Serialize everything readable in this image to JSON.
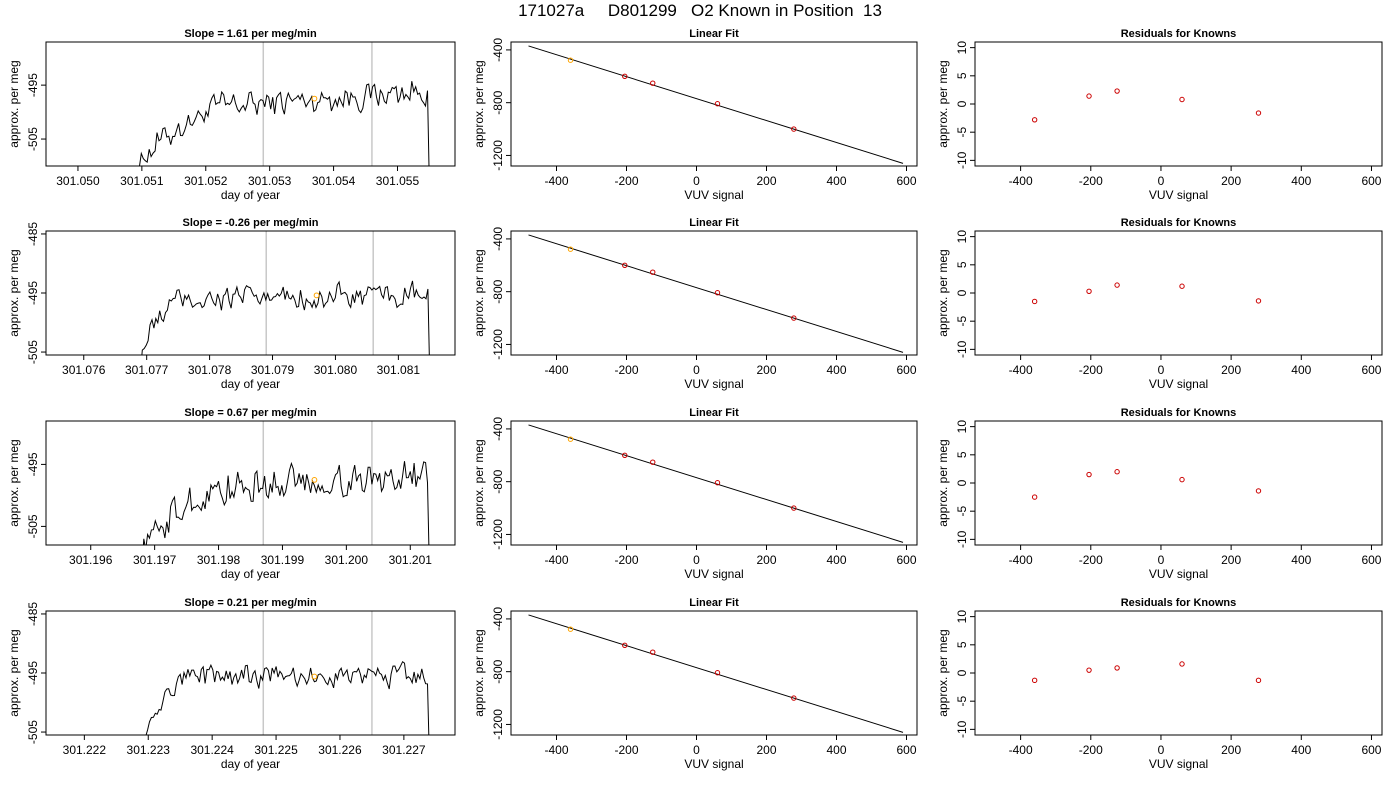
{
  "title": "171027a     D801299   O2 Known in Position  13",
  "colors": {
    "trace": "#000000",
    "vline": "#c8c8c8",
    "highlight": "#ffa500",
    "residual": "#cc0000",
    "fit": "#000000"
  },
  "chart_data": [
    {
      "type": "line",
      "panel": "timeseries",
      "row": 1,
      "title": "Slope =  1.61  per meg/min",
      "xlabel": "day of year",
      "ylabel": "approx. per meg",
      "xlim": [
        301.0495,
        301.0559
      ],
      "ylim": [
        -510,
        -487
      ],
      "xticks": [
        "301.050",
        "301.051",
        "301.052",
        "301.053",
        "301.054",
        "301.055"
      ],
      "yticks": [
        "-495",
        "-505"
      ],
      "vlines": [
        301.0529,
        301.0546
      ],
      "start": 301.0509,
      "end": 301.0555,
      "rise_end": 301.0522,
      "start_level": -512,
      "base_level": -499,
      "end_level": -496,
      "noise": 1.6,
      "highlight_point": {
        "x": 301.0537,
        "y": -497.5
      }
    },
    {
      "type": "scatter",
      "panel": "fit",
      "row": 1,
      "title": "Linear Fit",
      "xlabel": "VUV signal",
      "ylabel": "approx. per meg",
      "xlim": [
        -530,
        630
      ],
      "ylim": [
        -1280,
        -340
      ],
      "xticks": [
        "-400",
        "-200",
        "0",
        "200",
        "400",
        "600"
      ],
      "yticks": [
        "-400",
        "-800",
        "-1200"
      ],
      "line": {
        "x": [
          -480,
          590
        ],
        "y": [
          -370,
          -1260
        ]
      },
      "points": [
        [
          -360,
          -478
        ],
        [
          -205,
          -600
        ],
        [
          -125,
          -652
        ],
        [
          60,
          -808
        ],
        [
          278,
          -1000
        ]
      ],
      "highlight_index": 0
    },
    {
      "type": "scatter",
      "panel": "residuals",
      "row": 1,
      "title": "Residuals for Knowns",
      "xlabel": "VUV signal",
      "ylabel": "approx. per meg",
      "xlim": [
        -530,
        630
      ],
      "ylim": [
        -11,
        11
      ],
      "xticks": [
        "-400",
        "-200",
        "0",
        "200",
        "400",
        "600"
      ],
      "yticks": [
        "-10",
        "-5",
        "0",
        "5",
        "10"
      ],
      "points": [
        [
          -360,
          -2.8
        ],
        [
          -205,
          1.4
        ],
        [
          -125,
          2.3
        ],
        [
          60,
          0.8
        ],
        [
          278,
          -1.6
        ]
      ]
    },
    {
      "type": "line",
      "panel": "timeseries",
      "row": 2,
      "title": "Slope =  -0.26  per meg/min",
      "xlabel": "day of year",
      "ylabel": "approx. per meg",
      "xlim": [
        301.0754,
        301.0819
      ],
      "ylim": [
        -505.5,
        -484.5
      ],
      "xticks": [
        "301.076",
        "301.077",
        "301.078",
        "301.079",
        "301.080",
        "301.081"
      ],
      "yticks": [
        "-485",
        "-495",
        "-505"
      ],
      "vlines": [
        301.0789,
        301.0806
      ],
      "start": 301.0769,
      "end": 301.0815,
      "rise_end": 301.0775,
      "start_level": -507,
      "base_level": -496,
      "end_level": -495.5,
      "noise": 1.3,
      "highlight_point": {
        "x": 301.0797,
        "y": -495.4
      }
    },
    {
      "type": "scatter",
      "panel": "fit",
      "row": 2,
      "title": "Linear Fit",
      "xlabel": "VUV signal",
      "ylabel": "approx. per meg",
      "xlim": [
        -530,
        630
      ],
      "ylim": [
        -1280,
        -340
      ],
      "xticks": [
        "-400",
        "-200",
        "0",
        "200",
        "400",
        "600"
      ],
      "yticks": [
        "-400",
        "-800",
        "-1200"
      ],
      "line": {
        "x": [
          -480,
          590
        ],
        "y": [
          -370,
          -1260
        ]
      },
      "points": [
        [
          -360,
          -478
        ],
        [
          -205,
          -600
        ],
        [
          -125,
          -652
        ],
        [
          60,
          -808
        ],
        [
          278,
          -1000
        ]
      ],
      "highlight_index": 0
    },
    {
      "type": "scatter",
      "panel": "residuals",
      "row": 2,
      "title": "Residuals for Knowns",
      "xlabel": "VUV signal",
      "ylabel": "approx. per meg",
      "xlim": [
        -530,
        630
      ],
      "ylim": [
        -11,
        11
      ],
      "xticks": [
        "-400",
        "-200",
        "0",
        "200",
        "400",
        "600"
      ],
      "yticks": [
        "-10",
        "-5",
        "0",
        "5",
        "10"
      ],
      "points": [
        [
          -360,
          -1.5
        ],
        [
          -205,
          0.3
        ],
        [
          -125,
          1.4
        ],
        [
          60,
          1.2
        ],
        [
          278,
          -1.4
        ]
      ]
    },
    {
      "type": "line",
      "panel": "timeseries",
      "row": 3,
      "title": "Slope =  0.67  per meg/min",
      "xlabel": "day of year",
      "ylabel": "approx. per meg",
      "xlim": [
        301.1953,
        301.2017
      ],
      "ylim": [
        -508,
        -488
      ],
      "xticks": [
        "301.196",
        "301.197",
        "301.198",
        "301.199",
        "301.200",
        "301.201"
      ],
      "yticks": [
        "-495",
        "-505"
      ],
      "vlines": [
        301.1987,
        301.2004
      ],
      "start": 301.1968,
      "end": 301.2013,
      "rise_end": 301.198,
      "start_level": -510,
      "base_level": -499,
      "end_level": -496.5,
      "noise": 1.8,
      "highlight_point": {
        "x": 301.1995,
        "y": -497.5
      }
    },
    {
      "type": "scatter",
      "panel": "fit",
      "row": 3,
      "title": "Linear Fit",
      "xlabel": "VUV signal",
      "ylabel": "approx. per meg",
      "xlim": [
        -530,
        630
      ],
      "ylim": [
        -1280,
        -340
      ],
      "xticks": [
        "-400",
        "-200",
        "0",
        "200",
        "400",
        "600"
      ],
      "yticks": [
        "-400",
        "-800",
        "-1200"
      ],
      "line": {
        "x": [
          -480,
          590
        ],
        "y": [
          -370,
          -1260
        ]
      },
      "points": [
        [
          -360,
          -478
        ],
        [
          -205,
          -600
        ],
        [
          -125,
          -652
        ],
        [
          60,
          -808
        ],
        [
          278,
          -1000
        ]
      ],
      "highlight_index": 0
    },
    {
      "type": "scatter",
      "panel": "residuals",
      "row": 3,
      "title": "Residuals for Knowns",
      "xlabel": "VUV signal",
      "ylabel": "approx. per meg",
      "xlim": [
        -530,
        630
      ],
      "ylim": [
        -11,
        11
      ],
      "xticks": [
        "-400",
        "-200",
        "0",
        "200",
        "400",
        "600"
      ],
      "yticks": [
        "-10",
        "-5",
        "0",
        "5",
        "10"
      ],
      "points": [
        [
          -360,
          -2.5
        ],
        [
          -205,
          1.5
        ],
        [
          -125,
          2.0
        ],
        [
          60,
          0.6
        ],
        [
          278,
          -1.4
        ]
      ]
    },
    {
      "type": "line",
      "panel": "timeseries",
      "row": 4,
      "title": "Slope =  0.21  per meg/min",
      "xlabel": "day of year",
      "ylabel": "approx. per meg",
      "xlim": [
        301.2214,
        301.2278
      ],
      "ylim": [
        -505.5,
        -484.5
      ],
      "xticks": [
        "301.222",
        "301.223",
        "301.224",
        "301.225",
        "301.226",
        "301.227"
      ],
      "yticks": [
        "-485",
        "-495",
        "-505"
      ],
      "vlines": [
        301.2248,
        301.2265
      ],
      "start": 301.2229,
      "end": 301.2274,
      "rise_end": 301.2236,
      "start_level": -507,
      "base_level": -495.5,
      "end_level": -495.5,
      "noise": 1.2,
      "highlight_point": {
        "x": 301.2256,
        "y": -495.6
      }
    },
    {
      "type": "scatter",
      "panel": "fit",
      "row": 4,
      "title": "Linear Fit",
      "xlabel": "VUV signal",
      "ylabel": "approx. per meg",
      "xlim": [
        -530,
        630
      ],
      "ylim": [
        -1280,
        -340
      ],
      "xticks": [
        "-400",
        "-200",
        "0",
        "200",
        "400",
        "600"
      ],
      "yticks": [
        "-400",
        "-800",
        "-1200"
      ],
      "line": {
        "x": [
          -480,
          590
        ],
        "y": [
          -370,
          -1260
        ]
      },
      "points": [
        [
          -360,
          -478
        ],
        [
          -205,
          -600
        ],
        [
          -125,
          -652
        ],
        [
          60,
          -808
        ],
        [
          278,
          -1000
        ]
      ],
      "highlight_index": 0
    },
    {
      "type": "scatter",
      "panel": "residuals",
      "row": 4,
      "title": "Residuals for Knowns",
      "xlabel": "VUV signal",
      "ylabel": "approx. per meg",
      "xlim": [
        -530,
        630
      ],
      "ylim": [
        -11,
        11
      ],
      "xticks": [
        "-400",
        "-200",
        "0",
        "200",
        "400",
        "600"
      ],
      "yticks": [
        "-10",
        "-5",
        "0",
        "5",
        "10"
      ],
      "points": [
        [
          -360,
          -1.3
        ],
        [
          -205,
          0.5
        ],
        [
          -125,
          0.9
        ],
        [
          60,
          1.6
        ],
        [
          278,
          -1.3
        ]
      ]
    }
  ]
}
